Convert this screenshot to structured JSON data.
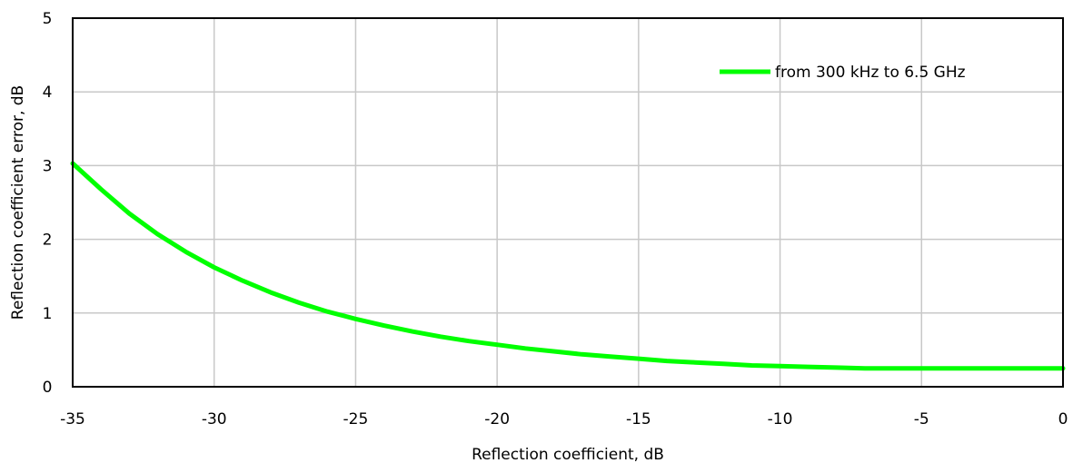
{
  "chart_data": {
    "type": "line",
    "xlabel": "Reflection coefficient, dB",
    "ylabel": "Reflection coefficient error, dB",
    "xlim": [
      -35,
      0
    ],
    "ylim": [
      0,
      5
    ],
    "x_ticks": [
      -35,
      -30,
      -25,
      -20,
      -15,
      -10,
      -5,
      0
    ],
    "y_ticks": [
      0,
      1,
      2,
      3,
      4,
      5
    ],
    "x_tick_labels": [
      "-35",
      "-30",
      "-25",
      "-20",
      "-15",
      "-10",
      "-5",
      "0"
    ],
    "y_tick_labels": [
      "0",
      "1",
      "2",
      "3",
      "4",
      "5"
    ],
    "grid": true,
    "legend_position": "top-right",
    "series": [
      {
        "name": "from 300 kHz to 6.5 GHz",
        "color": "#00ff00",
        "x": [
          -35,
          -34,
          -33,
          -32,
          -31,
          -30,
          -29,
          -28,
          -27,
          -26,
          -25,
          -24,
          -23,
          -22,
          -21,
          -20,
          -19,
          -18,
          -17,
          -16,
          -15,
          -14,
          -13,
          -12,
          -11,
          -10,
          -9,
          -8,
          -7,
          -6,
          -5,
          -4,
          -3,
          -2,
          -1,
          0
        ],
        "y": [
          3.03,
          2.68,
          2.35,
          2.07,
          1.83,
          1.62,
          1.44,
          1.28,
          1.14,
          1.02,
          0.92,
          0.83,
          0.75,
          0.68,
          0.62,
          0.57,
          0.52,
          0.48,
          0.44,
          0.41,
          0.38,
          0.35,
          0.33,
          0.31,
          0.29,
          0.28,
          0.27,
          0.26,
          0.25,
          0.25,
          0.25,
          0.25,
          0.25,
          0.25,
          0.25,
          0.25
        ]
      }
    ]
  }
}
